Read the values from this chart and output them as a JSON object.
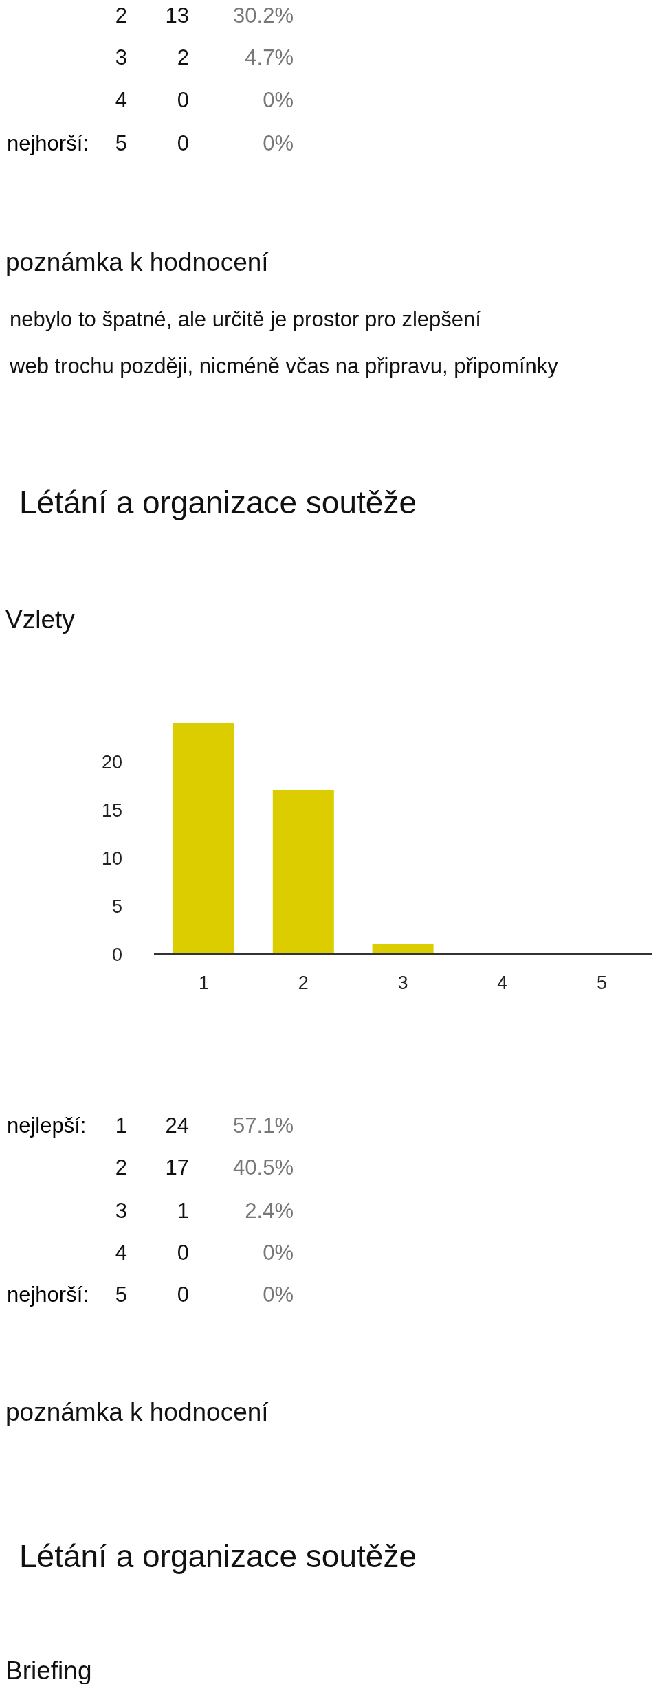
{
  "chart_data": {
    "type": "bar",
    "title": "Létání a organizace soutěže",
    "subtitle": "Vzlety",
    "categories": [
      "1",
      "2",
      "3",
      "4",
      "5"
    ],
    "values": [
      24,
      17,
      1,
      0,
      0
    ],
    "color": "#dccd00",
    "ylim": [
      0,
      24
    ],
    "yticks": [
      0,
      5,
      10,
      15,
      20
    ],
    "annotations": [
      "2 13 30.2%",
      "3 2 4.7%",
      "4 0 0%",
      "nejhorší: 5 0 0%",
      "poznámka k hodnocení",
      "nebylo to špatné, ale určitě je prostor pro zlepšení",
      "web trochu později, nicméně včas na připravu, připomínky",
      "nejlepší: 1 24 57.1%",
      "2 17 40.5%",
      "3 1 2.4%",
      "4 0 0%",
      "nejhorší: 5 0 0%",
      "poznámka k hodnocení",
      "Létání a organizace soutěže",
      "Briefing"
    ]
  }
}
